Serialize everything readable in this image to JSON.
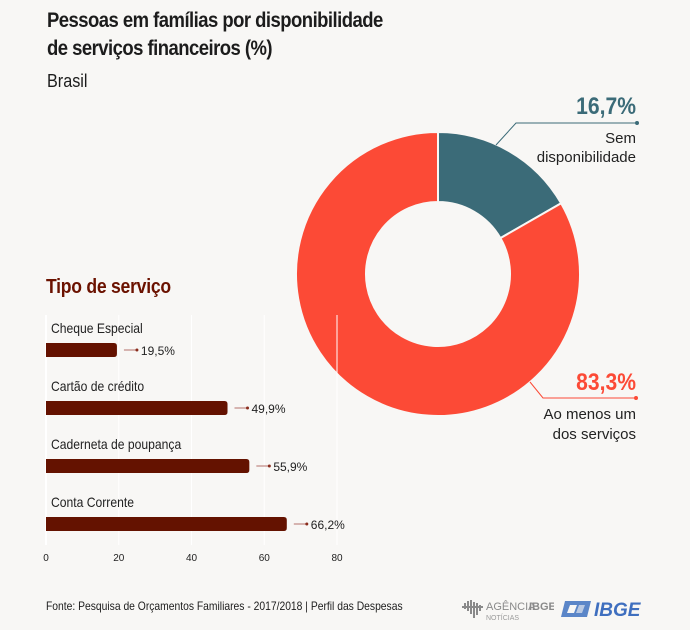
{
  "header": {
    "title_line1": "Pessoas em famílias por disponibilidade",
    "title_line2": "de serviços financeiros (%)",
    "subtitle": "Brasil"
  },
  "colors": {
    "teal": "#3b6b78",
    "red": "#fc4a36",
    "bar": "#641200",
    "section": "#6b1200"
  },
  "chart_data": [
    {
      "type": "pie",
      "variant": "donut",
      "slices": [
        {
          "name": "Sem disponibilidade",
          "label_line1": "Sem",
          "label_line2": "disponibilidade",
          "value": 16.7,
          "value_label": "16,7%",
          "color": "#3b6b78"
        },
        {
          "name": "Ao menos um dos serviços",
          "label_line1": "Ao menos um",
          "label_line2": "dos serviços",
          "value": 83.3,
          "value_label": "83,3%",
          "color": "#fc4a36"
        }
      ]
    },
    {
      "type": "bar",
      "orientation": "horizontal",
      "title": "Tipo de serviço",
      "categories": [
        "Cheque Especial",
        "Cartão de crédito",
        "Caderneta de poupança",
        "Conta Corrente"
      ],
      "values": [
        19.5,
        49.9,
        55.9,
        66.2
      ],
      "value_labels": [
        "19,5%",
        "49,9%",
        "55,9%",
        "66,2%"
      ],
      "xlim": [
        0,
        80
      ],
      "xticks": [
        0,
        20,
        40,
        60,
        80
      ],
      "xtick_labels": [
        "0",
        "20",
        "40",
        "60",
        "80"
      ],
      "grid": true
    }
  ],
  "footer": {
    "source": "Fonte: Pesquisa de Orçamentos Familiares - 2017/2018 | Perfil das Despesas",
    "logo_agencia_line1": "AGÊNCIA",
    "logo_agencia_bold": "IBGE",
    "logo_agencia_line2": "NOTÍCIAS",
    "logo_ibge": "IBGE"
  }
}
